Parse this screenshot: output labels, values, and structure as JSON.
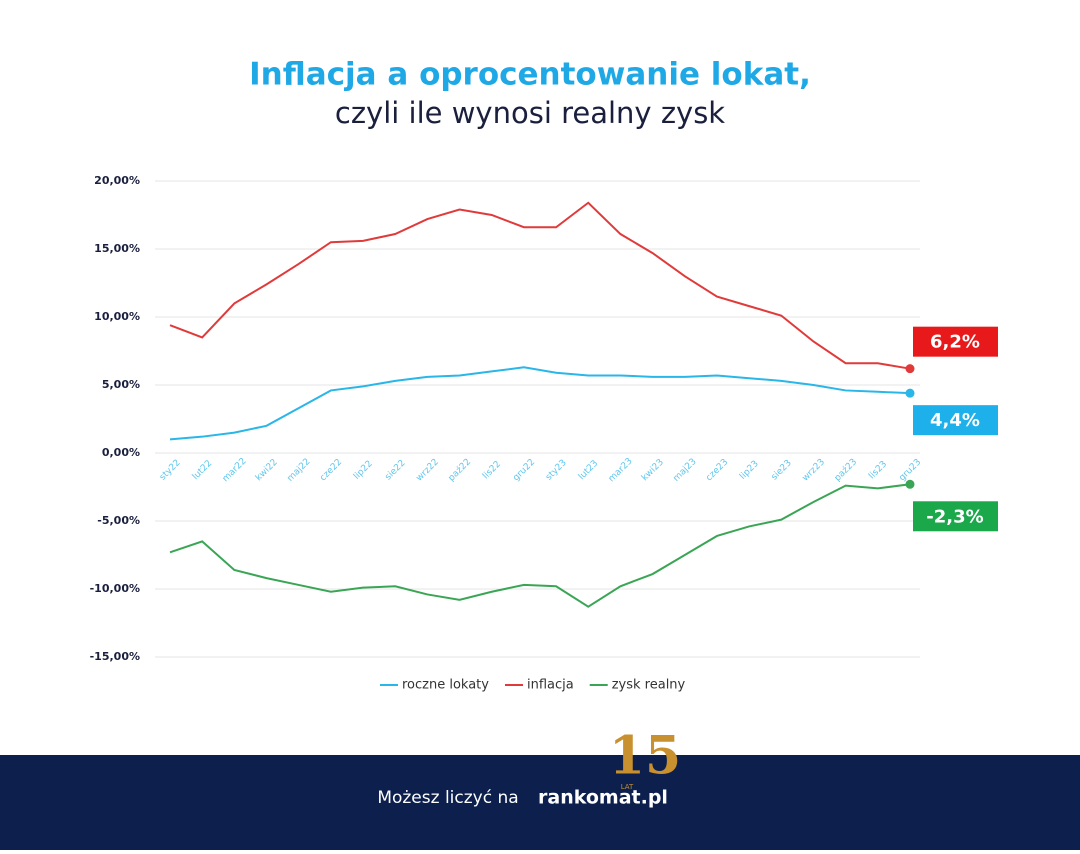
{
  "chart_data": {
    "type": "line",
    "title": "Inflacja a oprocentowanie lokat,",
    "subtitle": "czyli ile wynosi realny zysk",
    "categories": [
      "sty22",
      "lut22",
      "mar22",
      "kwi22",
      "maj22",
      "cze22",
      "lip22",
      "sie22",
      "wrz22",
      "paź22",
      "lis22",
      "gru22",
      "sty23",
      "lut23",
      "mar23",
      "kwi23",
      "maj23",
      "cze23",
      "lip23",
      "sie23",
      "wrz23",
      "paź23",
      "lis23",
      "gru23"
    ],
    "series": [
      {
        "name": "roczne lokaty",
        "color": "#29b6e8",
        "label_color": "#1eb0ea",
        "values": [
          1.0,
          1.2,
          1.5,
          2.0,
          3.3,
          4.6,
          4.9,
          5.3,
          5.6,
          5.7,
          6.0,
          6.3,
          5.9,
          5.7,
          5.7,
          5.6,
          5.6,
          5.7,
          5.5,
          5.3,
          5.0,
          4.6,
          4.5,
          4.4
        ],
        "value_labels": [
          null,
          null,
          null,
          null,
          null,
          null,
          null,
          null,
          null,
          null,
          null,
          null,
          null,
          null,
          null,
          null,
          null,
          null,
          null,
          null,
          null,
          null,
          null,
          "4,4%"
        ]
      },
      {
        "name": "inflacja",
        "color": "#e03a3a",
        "label_color": "#e8191a",
        "values": [
          9.4,
          8.5,
          11.0,
          12.4,
          13.9,
          15.5,
          15.6,
          16.1,
          17.2,
          17.9,
          17.5,
          16.6,
          16.6,
          18.4,
          16.1,
          14.7,
          13.0,
          11.5,
          10.8,
          10.1,
          8.2,
          6.6,
          6.6,
          6.2
        ],
        "value_labels": [
          null,
          null,
          null,
          null,
          null,
          null,
          null,
          null,
          null,
          null,
          null,
          null,
          null,
          null,
          null,
          null,
          null,
          null,
          null,
          null,
          null,
          null,
          null,
          "6,2%"
        ]
      },
      {
        "name": "zysk realny",
        "color": "#3aa655",
        "label_color": "#1aa84a",
        "values": [
          -7.3,
          -6.5,
          -8.6,
          -9.2,
          -9.7,
          -10.2,
          -9.9,
          -9.8,
          -10.4,
          -10.8,
          -10.2,
          -9.7,
          -9.8,
          -11.3,
          -9.8,
          -8.9,
          -7.5,
          -6.1,
          -5.4,
          -4.9,
          -3.6,
          -2.4,
          -2.6,
          -2.3
        ],
        "value_labels": [
          null,
          null,
          null,
          null,
          null,
          null,
          null,
          null,
          null,
          null,
          null,
          null,
          null,
          null,
          null,
          null,
          null,
          null,
          null,
          null,
          null,
          null,
          null,
          "-2,3%"
        ]
      }
    ],
    "ylim": [
      -15,
      20
    ],
    "yticks": [
      {
        "value": -15,
        "label": "-15,00%"
      },
      {
        "value": -10,
        "label": "-10,00%"
      },
      {
        "value": -5,
        "label": "-5,00%"
      },
      {
        "value": 0,
        "label": "0,00%"
      },
      {
        "value": 5,
        "label": "5,00%"
      },
      {
        "value": 10,
        "label": "10,00%"
      },
      {
        "value": 15,
        "label": "15,00%"
      },
      {
        "value": 20,
        "label": "20,00%"
      }
    ],
    "grid": true,
    "legend": "bottom"
  },
  "footer": {
    "text": "Możesz liczyć na",
    "brand": "rankomat.pl",
    "badge": "15",
    "badge_sub": "LAT"
  }
}
